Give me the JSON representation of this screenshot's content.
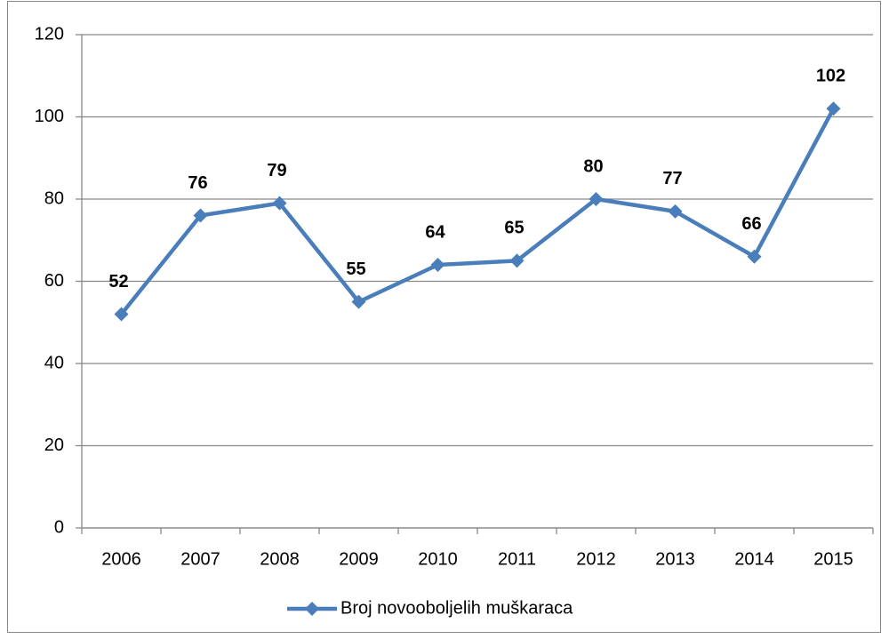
{
  "chart_data": {
    "type": "line",
    "categories": [
      "2006",
      "2007",
      "2008",
      "2009",
      "2010",
      "2011",
      "2012",
      "2013",
      "2014",
      "2015"
    ],
    "series": [
      {
        "name": "Broj novooboljelih muškaraca",
        "color": "#4a7ebb",
        "values": [
          52,
          76,
          79,
          55,
          64,
          65,
          80,
          77,
          66,
          102
        ]
      }
    ],
    "ylim": [
      0,
      120
    ],
    "yticks": [
      0,
      20,
      40,
      60,
      80,
      100,
      120
    ],
    "grid": true,
    "legend": "bottom"
  }
}
